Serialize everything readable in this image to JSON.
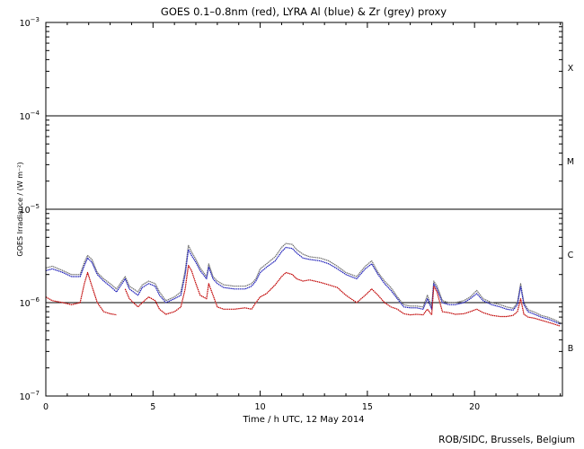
{
  "chart_data": {
    "type": "line",
    "title": "GOES 0.1–0.8nm (red), LYRA Al (blue) & Zr (grey) proxy",
    "xlabel": "Time / h UTC, 12 May 2014",
    "ylabel": "GOES Irradiance / (W m⁻²)",
    "xlim": [
      0,
      24.1
    ],
    "ylim": [
      1e-07,
      0.001
    ],
    "yscale": "log",
    "grid": "horizontal lines at class boundaries",
    "x_ticks": [
      0,
      5,
      10,
      15,
      20
    ],
    "y_ticks": [
      {
        "value": 1e-07,
        "base": "10",
        "exp": "−7"
      },
      {
        "value": 1e-06,
        "base": "10",
        "exp": "−6"
      },
      {
        "value": 1e-05,
        "base": "10",
        "exp": "−5"
      },
      {
        "value": 0.0001,
        "base": "10",
        "exp": "−4"
      },
      {
        "value": 0.001,
        "base": "10",
        "exp": "−3"
      }
    ],
    "class_labels": [
      {
        "label": "X",
        "value": 0.00033
      },
      {
        "label": "M",
        "value": 3.3e-05
      },
      {
        "label": "C",
        "value": 3.3e-06
      },
      {
        "label": "B",
        "value": 3.3e-07
      }
    ],
    "class_lines": [
      1e-06,
      1e-05,
      0.0001
    ],
    "series": [
      {
        "color": "#c00000",
        "x": [
          0,
          0.3,
          0.8,
          1.2,
          1.6,
          1.8,
          1.95,
          2.15,
          2.4,
          2.7,
          3.0,
          3.3,
          3.5,
          3.7,
          3.9,
          4.3,
          4.5,
          4.8,
          5.1,
          5.3,
          5.6,
          6.0,
          6.3,
          6.5,
          6.65,
          6.8,
          7.0,
          7.2,
          7.5,
          7.6,
          7.8,
          8.0,
          8.3,
          8.8,
          9.3,
          9.6,
          9.8,
          10.0,
          10.3,
          10.7,
          11.0,
          11.2,
          11.5,
          11.7,
          12.0,
          12.3,
          12.8,
          13.2,
          13.6,
          14.0,
          14.5,
          14.9,
          15.2,
          15.5,
          15.8,
          16.1,
          16.4,
          16.7,
          17.0,
          17.3,
          17.6,
          17.8,
          18.0,
          18.1,
          18.25,
          18.5,
          18.8,
          19.1,
          19.5,
          19.8,
          20.1,
          20.4,
          20.8,
          21.2,
          21.5,
          21.8,
          22.0,
          22.15,
          22.3,
          22.5,
          22.8,
          23.1,
          23.4,
          23.7,
          24.0
        ],
        "y": [
          1.15e-06,
          1.05e-06,
          1e-06,
          9.5e-07,
          1e-06,
          1.6e-06,
          2.1e-06,
          1.5e-06,
          1e-06,
          8e-07,
          7.6e-07,
          7.4e-07,
          null,
          1.4e-06,
          1.1e-06,
          9e-07,
          1e-06,
          1.15e-06,
          1.05e-06,
          8.5e-07,
          7.5e-07,
          8e-07,
          9e-07,
          1.4e-06,
          2.5e-06,
          2.2e-06,
          1.6e-06,
          1.2e-06,
          1.1e-06,
          1.6e-06,
          1.2e-06,
          9e-07,
          8.5e-07,
          8.5e-07,
          8.8e-07,
          8.5e-07,
          1e-06,
          1.15e-06,
          1.25e-06,
          1.55e-06,
          1.9e-06,
          2.1e-06,
          2e-06,
          1.8e-06,
          1.7e-06,
          1.75e-06,
          1.65e-06,
          1.55e-06,
          1.45e-06,
          1.2e-06,
          1e-06,
          1.2e-06,
          1.4e-06,
          1.2e-06,
          1e-06,
          9e-07,
          8.5e-07,
          7.6e-07,
          7.4e-07,
          7.5e-07,
          7.4e-07,
          8.5e-07,
          7.4e-07,
          1.5e-06,
          1.3e-06,
          8e-07,
          7.8e-07,
          7.5e-07,
          7.6e-07,
          8e-07,
          8.5e-07,
          7.8e-07,
          7.3e-07,
          7.1e-07,
          7.1e-07,
          7.3e-07,
          8e-07,
          1.1e-06,
          7.5e-07,
          7e-07,
          6.8e-07,
          6.5e-07,
          6.2e-07,
          5.9e-07,
          5.6e-07
        ]
      },
      {
        "color": "#1c1cb8",
        "x": [
          0,
          0.3,
          0.8,
          1.2,
          1.6,
          1.8,
          1.95,
          2.15,
          2.4,
          2.7,
          3.0,
          3.3,
          3.7,
          3.9,
          4.3,
          4.5,
          4.8,
          5.1,
          5.3,
          5.6,
          6.0,
          6.3,
          6.5,
          6.65,
          6.8,
          7.0,
          7.2,
          7.5,
          7.6,
          7.8,
          8.0,
          8.3,
          8.8,
          9.3,
          9.6,
          9.8,
          10.0,
          10.3,
          10.7,
          11.0,
          11.2,
          11.5,
          11.7,
          12.0,
          12.3,
          12.8,
          13.2,
          13.6,
          14.0,
          14.5,
          14.9,
          15.2,
          15.5,
          15.8,
          16.1,
          16.4,
          16.7,
          17.0,
          17.3,
          17.6,
          17.8,
          18.0,
          18.1,
          18.25,
          18.5,
          18.8,
          19.1,
          19.5,
          19.8,
          20.1,
          20.4,
          20.8,
          21.2,
          21.5,
          21.8,
          22.0,
          22.15,
          22.3,
          22.5,
          22.8,
          23.1,
          23.4,
          23.7,
          24.0
        ],
        "y": [
          2.2e-06,
          2.3e-06,
          2.1e-06,
          1.9e-06,
          1.9e-06,
          2.5e-06,
          3e-06,
          2.7e-06,
          2e-06,
          1.7e-06,
          1.5e-06,
          1.3e-06,
          1.8e-06,
          1.4e-06,
          1.2e-06,
          1.45e-06,
          1.6e-06,
          1.5e-06,
          1.2e-06,
          1e-06,
          1.1e-06,
          1.2e-06,
          2e-06,
          3.7e-06,
          3.2e-06,
          2.7e-06,
          2.2e-06,
          1.8e-06,
          2.4e-06,
          1.8e-06,
          1.6e-06,
          1.45e-06,
          1.4e-06,
          1.4e-06,
          1.5e-06,
          1.7e-06,
          2.1e-06,
          2.4e-06,
          2.8e-06,
          3.5e-06,
          3.9e-06,
          3.8e-06,
          3.4e-06,
          3e-06,
          2.9e-06,
          2.8e-06,
          2.6e-06,
          2.3e-06,
          2e-06,
          1.8e-06,
          2.3e-06,
          2.6e-06,
          2e-06,
          1.6e-06,
          1.35e-06,
          1.1e-06,
          9e-07,
          8.8e-07,
          8.8e-07,
          8.5e-07,
          1.1e-06,
          8.5e-07,
          1.6e-06,
          1.4e-06,
          1e-06,
          9.5e-07,
          9.5e-07,
          1e-06,
          1.1e-06,
          1.25e-06,
          1.05e-06,
          9.5e-07,
          9e-07,
          8.5e-07,
          8.3e-07,
          9.5e-07,
          1.5e-06,
          9.5e-07,
          8e-07,
          7.5e-07,
          7e-07,
          6.7e-07,
          6.3e-07,
          5.9e-07
        ]
      },
      {
        "color": "#6e6e6e",
        "x": [
          0,
          0.3,
          0.8,
          1.2,
          1.6,
          1.8,
          1.95,
          2.15,
          2.4,
          2.7,
          3.0,
          3.3,
          3.7,
          3.9,
          4.3,
          4.5,
          4.8,
          5.1,
          5.3,
          5.6,
          6.0,
          6.3,
          6.5,
          6.65,
          6.8,
          7.0,
          7.2,
          7.5,
          7.6,
          7.8,
          8.0,
          8.3,
          8.8,
          9.3,
          9.6,
          9.8,
          10.0,
          10.3,
          10.7,
          11.0,
          11.2,
          11.5,
          11.7,
          12.0,
          12.3,
          12.8,
          13.2,
          13.6,
          14.0,
          14.5,
          14.9,
          15.2,
          15.5,
          15.8,
          16.1,
          16.4,
          16.7,
          17.0,
          17.3,
          17.6,
          17.8,
          18.0,
          18.1,
          18.25,
          18.5,
          18.8,
          19.1,
          19.5,
          19.8,
          20.1,
          20.4,
          20.8,
          21.2,
          21.5,
          21.8,
          22.0,
          22.15,
          22.3,
          22.5,
          22.8,
          23.1,
          23.4,
          23.7,
          24.0
        ],
        "y": [
          2.35e-06,
          2.45e-06,
          2.2e-06,
          2e-06,
          2e-06,
          2.7e-06,
          3.2e-06,
          2.9e-06,
          2.1e-06,
          1.8e-06,
          1.6e-06,
          1.4e-06,
          1.9e-06,
          1.5e-06,
          1.3e-06,
          1.55e-06,
          1.7e-06,
          1.6e-06,
          1.3e-06,
          1.05e-06,
          1.15e-06,
          1.3e-06,
          2.2e-06,
          4.1e-06,
          3.5e-06,
          2.9e-06,
          2.35e-06,
          1.9e-06,
          2.6e-06,
          1.9e-06,
          1.7e-06,
          1.55e-06,
          1.5e-06,
          1.5e-06,
          1.6e-06,
          1.8e-06,
          2.3e-06,
          2.6e-06,
          3.1e-06,
          3.9e-06,
          4.3e-06,
          4.2e-06,
          3.7e-06,
          3.3e-06,
          3.1e-06,
          3e-06,
          2.8e-06,
          2.45e-06,
          2.1e-06,
          1.9e-06,
          2.45e-06,
          2.8e-06,
          2.1e-06,
          1.7e-06,
          1.45e-06,
          1.15e-06,
          9.5e-07,
          9.2e-07,
          9.2e-07,
          9e-07,
          1.2e-06,
          9e-07,
          1.7e-06,
          1.5e-06,
          1.05e-06,
          1e-06,
          1e-06,
          1.05e-06,
          1.15e-06,
          1.35e-06,
          1.1e-06,
          1e-06,
          9.5e-07,
          9e-07,
          8.7e-07,
          1e-06,
          1.6e-06,
          1e-06,
          8.4e-07,
          7.9e-07,
          7.3e-07,
          7e-07,
          6.6e-07,
          6.1e-07
        ]
      }
    ]
  },
  "footer": {
    "credit": "ROB/SIDC, Brussels, Belgium"
  }
}
